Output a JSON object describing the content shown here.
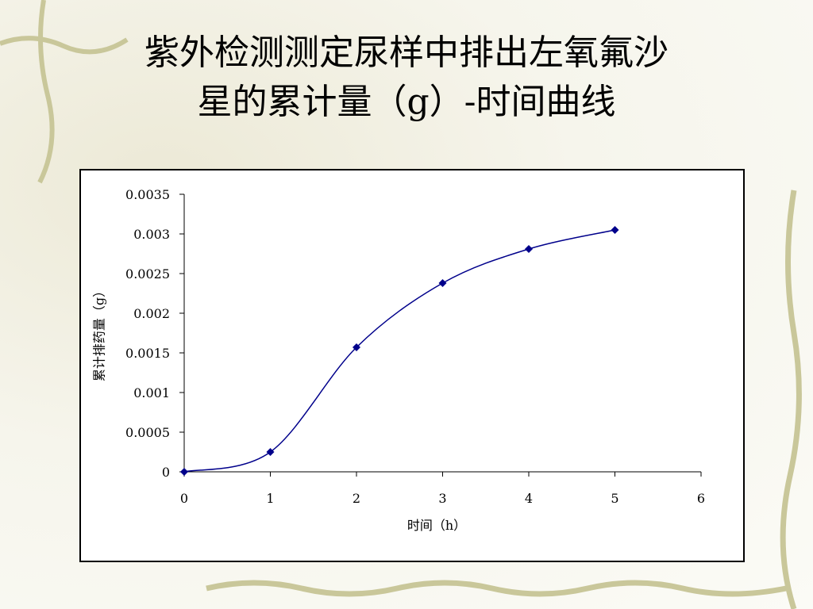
{
  "chart_data": {
    "type": "line",
    "title_lines": [
      "紫外检测测定尿样中排出左氧氟沙",
      "星的累计量（g）-时间曲线"
    ],
    "x_label": "时间（h）",
    "y_label": "累计排药量（g）",
    "x": [
      0,
      1,
      2,
      3,
      4,
      5
    ],
    "series": [
      {
        "color": "#00008b",
        "values": [
          0,
          0.00025,
          0.00157,
          0.00238,
          0.00281,
          0.00305
        ]
      }
    ],
    "xlim": [
      0,
      6
    ],
    "xticks": [
      0,
      1,
      2,
      3,
      4,
      5,
      6
    ],
    "ylim": [
      0,
      0.0035
    ],
    "yticks": [
      0,
      0.0005,
      0.001,
      0.0015,
      0.002,
      0.0025,
      0.003,
      0.0035
    ]
  }
}
